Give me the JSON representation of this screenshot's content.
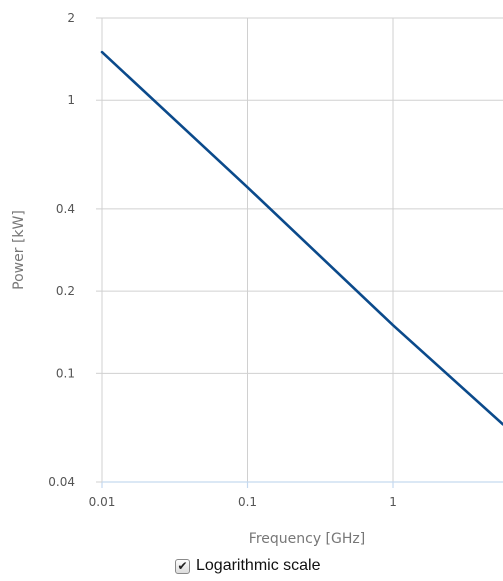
{
  "chart_data": {
    "type": "line",
    "xlabel": "Frequency [GHz]",
    "ylabel": "Power [kW]",
    "x_scale": "log",
    "y_scale": "log",
    "xlim": [
      0.01,
      5.7
    ],
    "ylim": [
      0.04,
      2
    ],
    "x_ticks": [
      0.01,
      0.1,
      1
    ],
    "x_tick_labels": [
      "0.01",
      "0.1",
      "1"
    ],
    "y_ticks": [
      0.04,
      0.1,
      0.2,
      0.4,
      1,
      2
    ],
    "y_tick_labels": [
      "0.04",
      "0.1",
      "0.2",
      "0.4",
      "1",
      "2"
    ],
    "grid": true,
    "series": [
      {
        "color": "#0b4a8b",
        "x": [
          0.01,
          0.1,
          1,
          5.7
        ],
        "y": [
          1.5,
          0.48,
          0.15,
          0.065
        ]
      }
    ]
  },
  "controls": {
    "log_scale_label": "Logarithmic scale",
    "log_scale_checked": true,
    "check_glyph": "✔"
  }
}
